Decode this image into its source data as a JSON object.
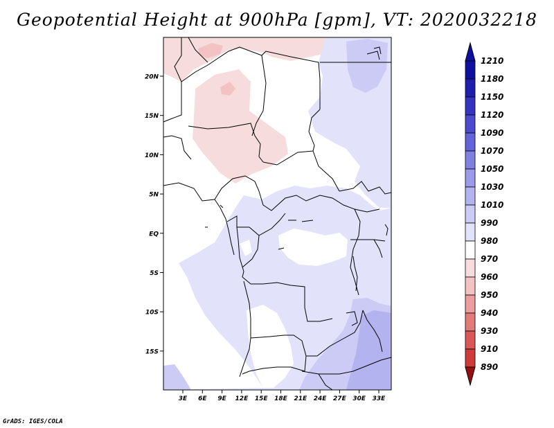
{
  "title": "Geopotential Height at 900hPa [gpm], VT: 2020032218",
  "credit": "GrADS: IGES/COLA",
  "colors": {
    "reds": [
      "#f6dcdc",
      "#f3c3c3",
      "#ec9d9d",
      "#e27a7a",
      "#d95757",
      "#cf3b3b",
      "#c22727",
      "#ad1a1a",
      "#961010"
    ],
    "white": "#ffffff",
    "blues": [
      "#e2e2fa",
      "#cbcbf5",
      "#b3b3ef",
      "#9b9bea",
      "#8080e3",
      "#6464da",
      "#4b4bce",
      "#3434c0",
      "#1f1fae",
      "#1010a0"
    ]
  },
  "map": {
    "lat_labels": [
      "20N",
      "15N",
      "10N",
      "5N",
      "EQ",
      "5S",
      "10S",
      "15S"
    ],
    "lon_labels": [
      "3E",
      "6E",
      "9E",
      "12E",
      "15E",
      "18E",
      "21E",
      "24E",
      "27E",
      "30E",
      "33E"
    ]
  },
  "colorbar": {
    "labels": [
      "1210",
      "1180",
      "1150",
      "1120",
      "1090",
      "1070",
      "1050",
      "1030",
      "1010",
      "990",
      "980",
      "970",
      "960",
      "950",
      "940",
      "930",
      "910",
      "890"
    ]
  }
}
